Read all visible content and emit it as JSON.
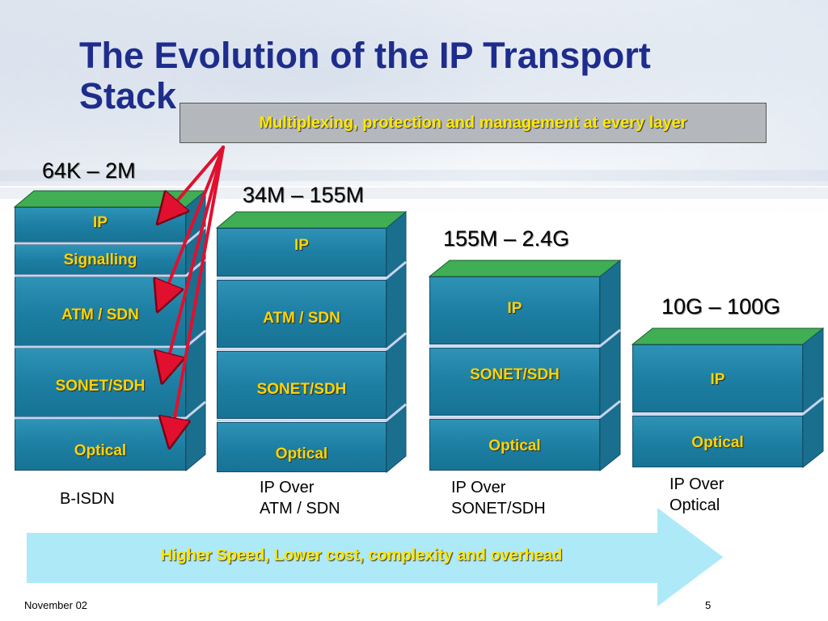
{
  "title": "The Evolution of the IP Transport Stack",
  "banner": "Multiplexing, protection and management at every layer",
  "stacks": [
    {
      "speed": "64K – 2M",
      "layers": [
        "IP",
        "Signalling",
        "ATM / SDN",
        "SONET/SDH",
        "Optical"
      ],
      "caption_lines": [
        "B-ISDN"
      ]
    },
    {
      "speed": "34M – 155M",
      "layers": [
        "IP",
        "ATM / SDN",
        "SONET/SDH",
        "Optical"
      ],
      "caption_lines": [
        "IP Over",
        "ATM / SDN"
      ]
    },
    {
      "speed": "155M – 2.4G",
      "layers": [
        "IP",
        "SONET/SDH",
        "Optical"
      ],
      "caption_lines": [
        "IP Over",
        "SONET/SDH"
      ]
    },
    {
      "speed": "10G – 100G",
      "layers": [
        "IP",
        "Optical"
      ],
      "caption_lines": [
        "IP Over",
        "Optical"
      ]
    }
  ],
  "arrow_text": "Higher Speed, Lower cost, complexity and overhead",
  "footer": {
    "date": "November 02",
    "page": "5"
  },
  "colors": {
    "title": "#1e2d8c",
    "layer_fill": "#1d7fa3",
    "layer_label": "#ffd400",
    "banner_text": "#ffe800",
    "arrow_fill": "#aee9f8",
    "pointer_red": "#e0102e"
  }
}
